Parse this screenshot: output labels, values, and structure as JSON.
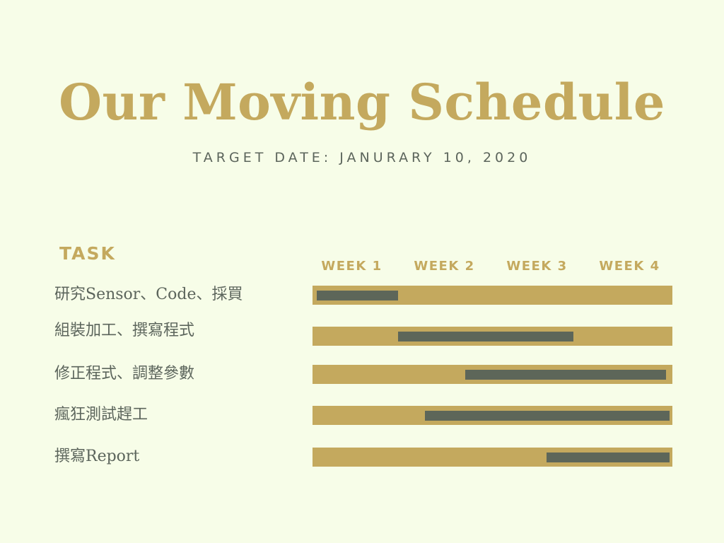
{
  "title": "Our Moving Schedule",
  "subtitle": "TARGET DATE: JANURARY 10, 2020",
  "task_heading": "TASK",
  "weeks": [
    "WEEK 1",
    "WEEK 2",
    "WEEK 3",
    "WEEK 4"
  ],
  "tasks": [
    {
      "label": "研究Sensor、Code、採買",
      "start_week": 0.05,
      "end_week": 0.95
    },
    {
      "label": "組裝加工、撰寫程式",
      "start_week": 0.95,
      "end_week": 2.9
    },
    {
      "label": "修正程式、調整參數",
      "start_week": 1.7,
      "end_week": 3.93
    },
    {
      "label": "瘋狂測試趕工",
      "start_week": 1.25,
      "end_week": 3.97
    },
    {
      "label": "撰寫Report",
      "start_week": 2.6,
      "end_week": 3.97
    }
  ],
  "colors": {
    "background": "#f7fde8",
    "accent_gold": "#c4a95e",
    "bar_gray": "#5d6659",
    "text_gray": "#5c655c"
  }
}
